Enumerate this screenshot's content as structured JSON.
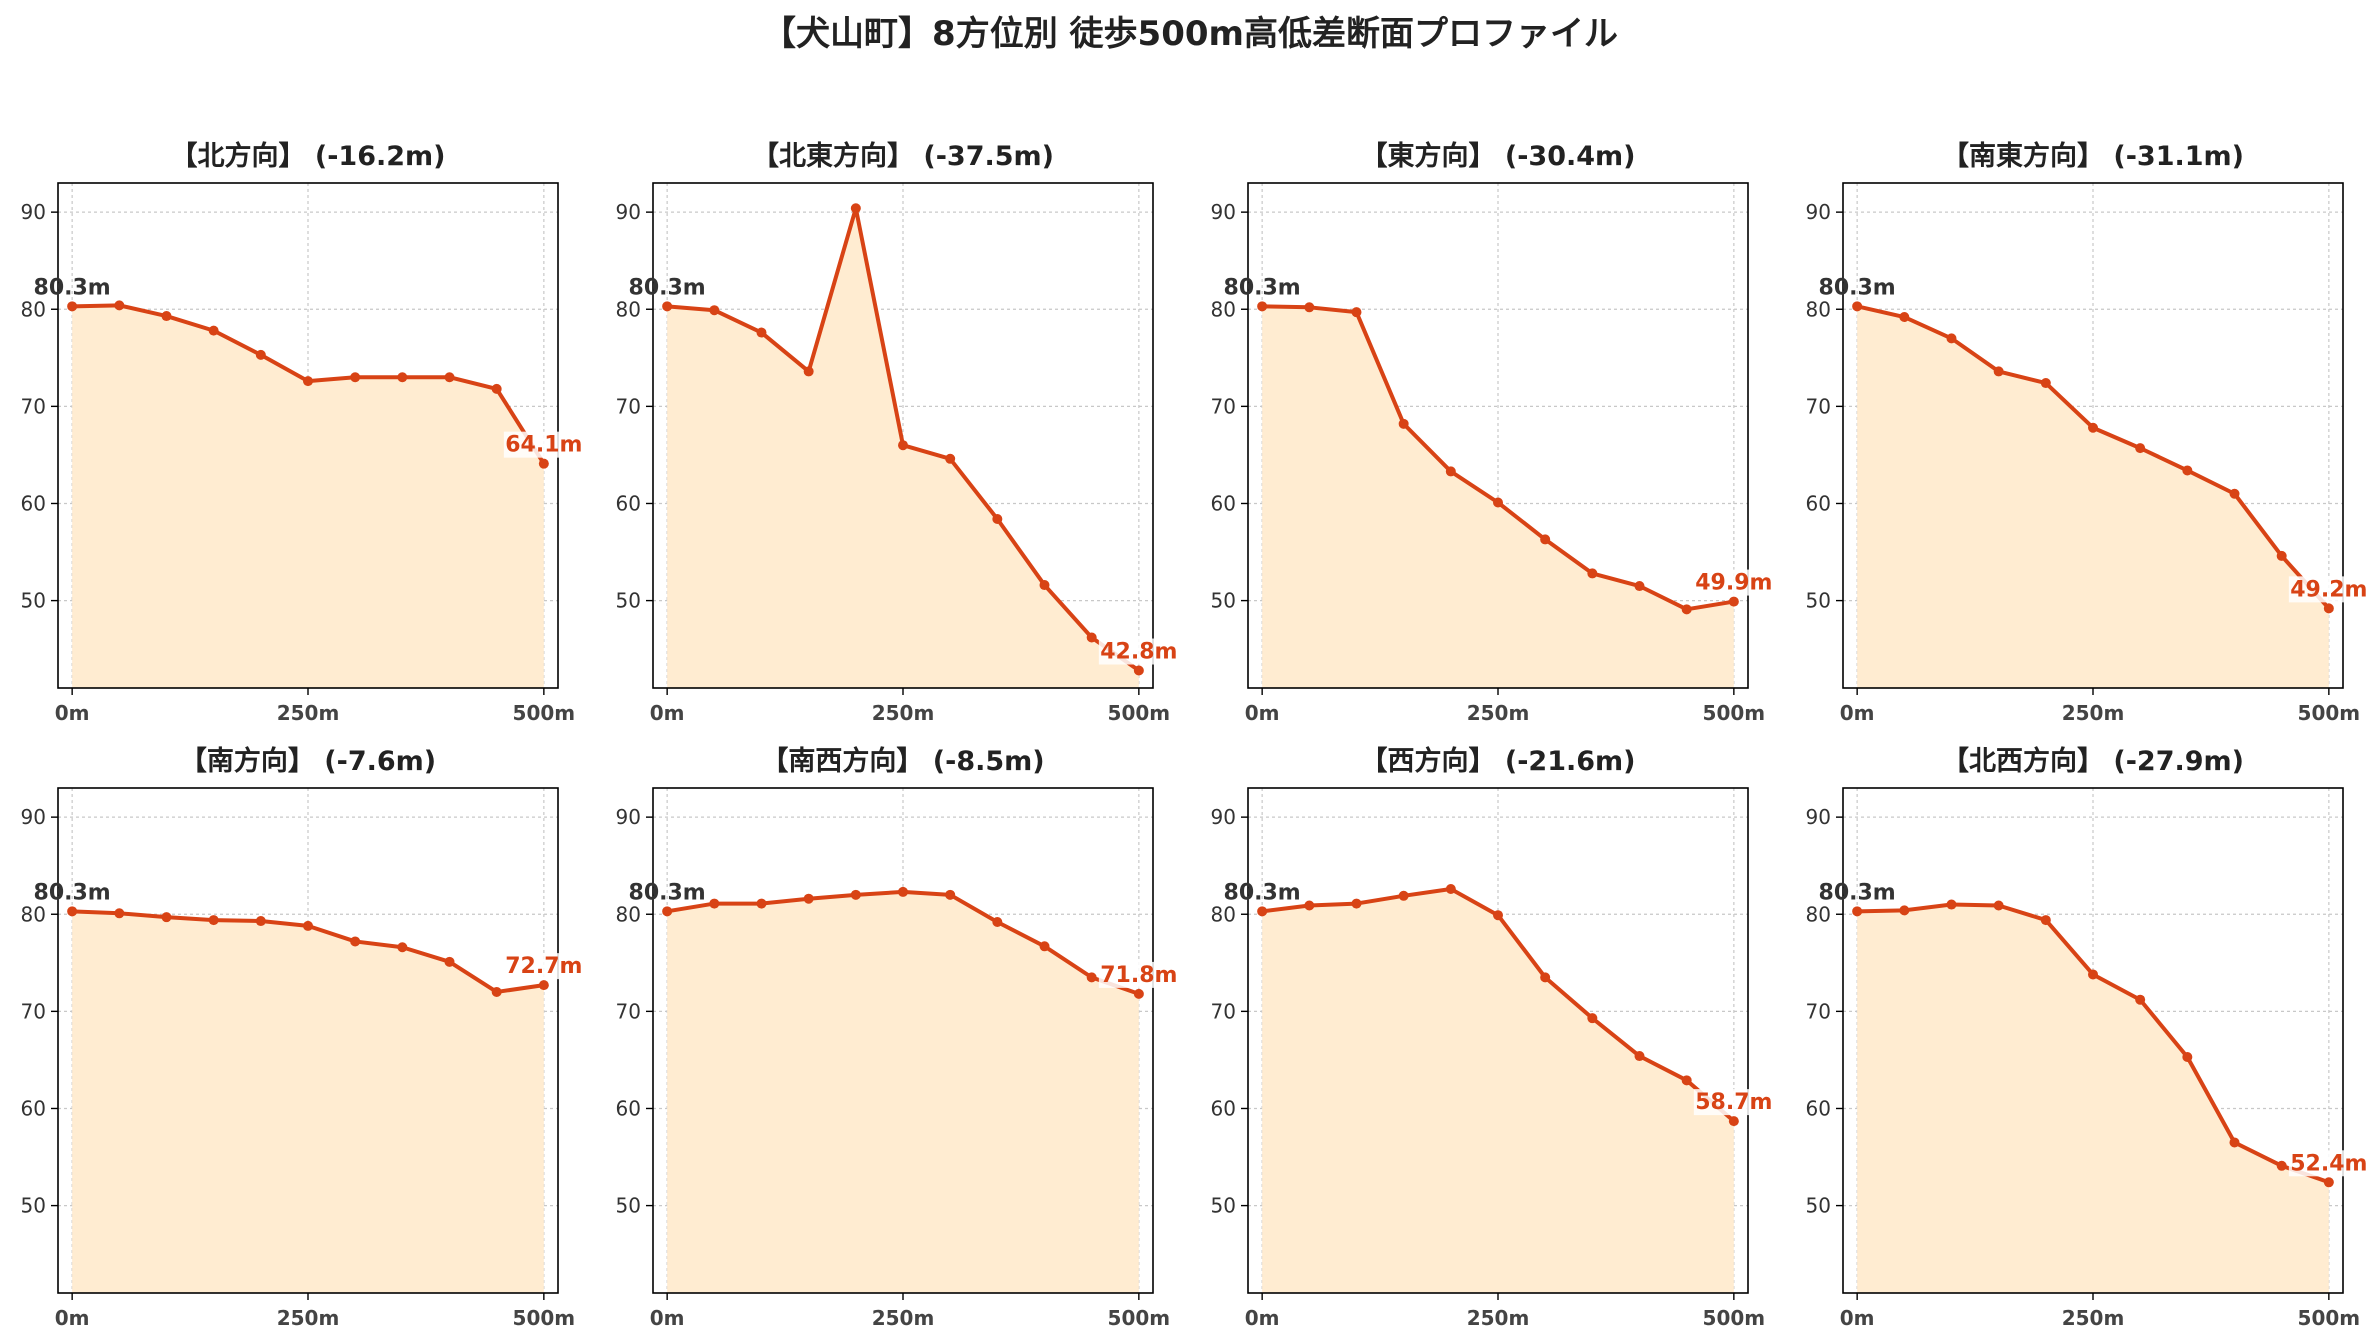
{
  "title": "【犬山町】8方位別 徒歩500m高低差断面プロファイル",
  "colors": {
    "line": "#d84315",
    "fill": "#ffecd1",
    "start_label": "#333333",
    "end_label": "#d84315"
  },
  "chart_data": [
    {
      "type": "area",
      "title": "【北方向】 (-16.2m)",
      "x": [
        0,
        50,
        100,
        150,
        200,
        250,
        300,
        350,
        400,
        450,
        500
      ],
      "values": [
        80.3,
        80.4,
        79.3,
        77.8,
        75.3,
        72.6,
        73.0,
        73.0,
        73.0,
        71.8,
        64.1
      ],
      "start_label": "80.3m",
      "end_label": "64.1m",
      "xticks": [
        "0m",
        "250m",
        "500m"
      ],
      "yticks": [
        50,
        60,
        70,
        80,
        90
      ],
      "ylim": [
        41,
        93
      ],
      "grid": true
    },
    {
      "type": "area",
      "title": "【北東方向】 (-37.5m)",
      "x": [
        0,
        50,
        100,
        150,
        200,
        250,
        300,
        350,
        400,
        450,
        500
      ],
      "values": [
        80.3,
        79.9,
        77.6,
        73.6,
        90.4,
        66.0,
        64.6,
        58.4,
        51.6,
        46.2,
        42.8
      ],
      "start_label": "80.3m",
      "end_label": "42.8m",
      "xticks": [
        "0m",
        "250m",
        "500m"
      ],
      "yticks": [
        50,
        60,
        70,
        80,
        90
      ],
      "ylim": [
        41,
        93
      ],
      "grid": true
    },
    {
      "type": "area",
      "title": "【東方向】 (-30.4m)",
      "x": [
        0,
        50,
        100,
        150,
        200,
        250,
        300,
        350,
        400,
        450,
        500
      ],
      "values": [
        80.3,
        80.2,
        79.7,
        68.2,
        63.3,
        60.1,
        56.3,
        52.8,
        51.5,
        49.1,
        49.9
      ],
      "start_label": "80.3m",
      "end_label": "49.9m",
      "xticks": [
        "0m",
        "250m",
        "500m"
      ],
      "yticks": [
        50,
        60,
        70,
        80,
        90
      ],
      "ylim": [
        41,
        93
      ],
      "grid": true
    },
    {
      "type": "area",
      "title": "【南東方向】 (-31.1m)",
      "x": [
        0,
        50,
        100,
        150,
        200,
        250,
        300,
        350,
        400,
        450,
        500
      ],
      "values": [
        80.3,
        79.2,
        77.0,
        73.6,
        72.4,
        67.8,
        65.7,
        63.4,
        61.0,
        54.6,
        49.2
      ],
      "start_label": "80.3m",
      "end_label": "49.2m",
      "xticks": [
        "0m",
        "250m",
        "500m"
      ],
      "yticks": [
        50,
        60,
        70,
        80,
        90
      ],
      "ylim": [
        41,
        93
      ],
      "grid": true
    },
    {
      "type": "area",
      "title": "【南方向】 (-7.6m)",
      "x": [
        0,
        50,
        100,
        150,
        200,
        250,
        300,
        350,
        400,
        450,
        500
      ],
      "values": [
        80.3,
        80.1,
        79.7,
        79.4,
        79.3,
        78.8,
        77.2,
        76.6,
        75.1,
        72.0,
        72.7
      ],
      "start_label": "80.3m",
      "end_label": "72.7m",
      "xticks": [
        "0m",
        "250m",
        "500m"
      ],
      "yticks": [
        50,
        60,
        70,
        80,
        90
      ],
      "ylim": [
        41,
        93
      ],
      "grid": true
    },
    {
      "type": "area",
      "title": "【南西方向】 (-8.5m)",
      "x": [
        0,
        50,
        100,
        150,
        200,
        250,
        300,
        350,
        400,
        450,
        500
      ],
      "values": [
        80.3,
        81.1,
        81.1,
        81.6,
        82.0,
        82.3,
        82.0,
        79.2,
        76.7,
        73.5,
        71.8
      ],
      "start_label": "80.3m",
      "end_label": "71.8m",
      "xticks": [
        "0m",
        "250m",
        "500m"
      ],
      "yticks": [
        50,
        60,
        70,
        80,
        90
      ],
      "ylim": [
        41,
        93
      ],
      "grid": true
    },
    {
      "type": "area",
      "title": "【西方向】 (-21.6m)",
      "x": [
        0,
        50,
        100,
        150,
        200,
        250,
        300,
        350,
        400,
        450,
        500
      ],
      "values": [
        80.3,
        80.9,
        81.1,
        81.9,
        82.6,
        79.9,
        73.5,
        69.3,
        65.4,
        62.9,
        58.7
      ],
      "start_label": "80.3m",
      "end_label": "58.7m",
      "xticks": [
        "0m",
        "250m",
        "500m"
      ],
      "yticks": [
        50,
        60,
        70,
        80,
        90
      ],
      "ylim": [
        41,
        93
      ],
      "grid": true
    },
    {
      "type": "area",
      "title": "【北西方向】 (-27.9m)",
      "x": [
        0,
        50,
        100,
        150,
        200,
        250,
        300,
        350,
        400,
        450,
        500
      ],
      "values": [
        80.3,
        80.4,
        81.0,
        80.9,
        79.4,
        73.8,
        71.2,
        65.3,
        56.5,
        54.1,
        52.4
      ],
      "start_label": "80.3m",
      "end_label": "52.4m",
      "xticks": [
        "0m",
        "250m",
        "500m"
      ],
      "yticks": [
        50,
        60,
        70,
        80,
        90
      ],
      "ylim": [
        41,
        93
      ],
      "grid": true
    }
  ]
}
